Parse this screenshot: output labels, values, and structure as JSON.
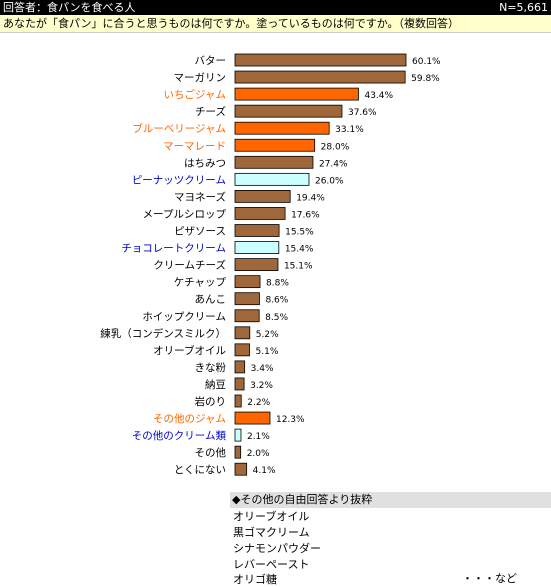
{
  "header": {
    "title": "回答者：食パンを食べる人",
    "n": "N=5,661"
  },
  "question": "あなたが「食パン」に合うと思うものは何ですか。塗っているものは何ですか。（複数回答）",
  "colors": {
    "default": "#a0673a",
    "jam": "#ff6600",
    "cream": "#ccffff",
    "jam_label": "#ff6600",
    "cream_label": "#0000cc"
  },
  "chart_data": {
    "type": "bar",
    "orientation": "horizontal",
    "xlim": [
      0,
      60.1
    ],
    "grid": false,
    "categories": [
      "バター",
      "マーガリン",
      "いちごジャム",
      "チーズ",
      "ブルーベリージャム",
      "マーマレード",
      "はちみつ",
      "ピーナッツクリーム",
      "マヨネーズ",
      "メープルシロップ",
      "ピザソース",
      "チョコレートクリーム",
      "クリームチーズ",
      "ケチャップ",
      "あんこ",
      "ホイップクリーム",
      "練乳（コンデンスミルク）",
      "オリーブオイル",
      "きな粉",
      "納豆",
      "岩のり",
      "その他のジャム",
      "その他のクリーム類",
      "その他",
      "とくにない"
    ],
    "values": [
      60.1,
      59.8,
      43.4,
      37.6,
      33.1,
      28.0,
      27.4,
      26.0,
      19.4,
      17.6,
      15.5,
      15.4,
      15.1,
      8.8,
      8.6,
      8.5,
      5.2,
      5.1,
      3.4,
      3.2,
      2.2,
      12.3,
      2.1,
      2.0,
      4.1
    ],
    "value_labels": [
      "60.1%",
      "59.8%",
      "43.4%",
      "37.6%",
      "33.1%",
      "28.0%",
      "27.4%",
      "26.0%",
      "19.4%",
      "17.6%",
      "15.5%",
      "15.4%",
      "15.1%",
      "8.8%",
      "8.6%",
      "8.5%",
      "5.2%",
      "5.1%",
      "3.4%",
      "3.2%",
      "2.2%",
      "12.3%",
      "2.1%",
      "2.0%",
      "4.1%"
    ],
    "groups": [
      "default",
      "default",
      "jam",
      "default",
      "jam",
      "jam",
      "default",
      "cream",
      "default",
      "default",
      "default",
      "cream",
      "default",
      "default",
      "default",
      "default",
      "default",
      "default",
      "default",
      "default",
      "default",
      "jam",
      "cream",
      "default",
      "default"
    ]
  },
  "free_answers": {
    "title": "◆その他の自由回答より抜粋",
    "items": [
      "オリーブオイル",
      "黒ゴマクリーム",
      "シナモンパウダー",
      "レバーペースト",
      "オリゴ糖"
    ],
    "etc": "・・・など"
  }
}
